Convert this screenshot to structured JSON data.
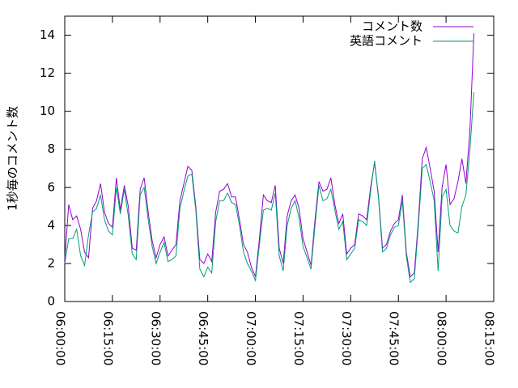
{
  "chart_data": {
    "type": "line",
    "ylabel": "1秒毎のコメント数",
    "x": [
      "06:00:00",
      "06:01:15",
      "06:02:30",
      "06:03:45",
      "06:05:00",
      "06:06:15",
      "06:07:30",
      "06:08:45",
      "06:10:00",
      "06:11:15",
      "06:12:30",
      "06:13:45",
      "06:15:00",
      "06:16:15",
      "06:17:30",
      "06:18:45",
      "06:20:00",
      "06:21:15",
      "06:22:30",
      "06:23:45",
      "06:25:00",
      "06:26:15",
      "06:27:30",
      "06:28:45",
      "06:30:00",
      "06:31:15",
      "06:32:30",
      "06:33:45",
      "06:35:00",
      "06:36:15",
      "06:37:30",
      "06:38:45",
      "06:40:00",
      "06:41:15",
      "06:42:30",
      "06:43:45",
      "06:45:00",
      "06:46:15",
      "06:47:30",
      "06:48:45",
      "06:50:00",
      "06:51:15",
      "06:52:30",
      "06:53:45",
      "06:55:00",
      "06:56:15",
      "06:57:30",
      "06:58:45",
      "07:00:00",
      "07:01:15",
      "07:02:30",
      "07:03:45",
      "07:05:00",
      "07:06:15",
      "07:07:30",
      "07:08:45",
      "07:10:00",
      "07:11:15",
      "07:12:30",
      "07:13:45",
      "07:15:00",
      "07:16:15",
      "07:17:30",
      "07:18:45",
      "07:20:00",
      "07:21:15",
      "07:22:30",
      "07:23:45",
      "07:25:00",
      "07:26:15",
      "07:27:30",
      "07:28:45",
      "07:30:00",
      "07:31:15",
      "07:32:30",
      "07:33:45",
      "07:35:00",
      "07:36:15",
      "07:37:30",
      "07:38:45",
      "07:40:00",
      "07:41:15",
      "07:42:30",
      "07:43:45",
      "07:45:00",
      "07:46:15",
      "07:47:30",
      "07:48:45",
      "07:50:00",
      "07:51:15",
      "07:52:30",
      "07:53:45",
      "07:55:00",
      "07:56:15",
      "07:57:30",
      "07:58:45",
      "08:00:00",
      "08:01:15",
      "08:02:30",
      "08:03:45",
      "08:05:00",
      "08:06:15",
      "08:07:30",
      "08:08:45"
    ],
    "series": [
      {
        "name": "コメント数",
        "color": "#9400d3",
        "values": [
          2.2,
          5.1,
          4.3,
          4.5,
          3.8,
          2.6,
          2.3,
          4.9,
          5.3,
          6.2,
          4.7,
          4.1,
          3.9,
          6.5,
          4.8,
          6.1,
          5.0,
          2.8,
          2.7,
          5.9,
          6.5,
          4.7,
          3.2,
          2.3,
          3.0,
          3.4,
          2.4,
          2.7,
          3.0,
          5.3,
          6.2,
          7.1,
          6.9,
          5.0,
          2.2,
          2.0,
          2.5,
          2.1,
          4.7,
          5.8,
          5.9,
          6.2,
          5.5,
          5.5,
          4.3,
          3.0,
          2.6,
          1.8,
          1.3,
          3.3,
          5.6,
          5.3,
          5.2,
          6.1,
          2.8,
          2.0,
          4.5,
          5.3,
          5.6,
          4.9,
          3.3,
          2.6,
          1.9,
          4.3,
          6.3,
          5.8,
          5.9,
          6.5,
          5.1,
          4.1,
          4.6,
          2.5,
          2.8,
          3.0,
          4.6,
          4.5,
          4.3,
          6.0,
          7.3,
          5.5,
          2.8,
          3.0,
          3.7,
          4.1,
          4.3,
          5.6,
          2.6,
          1.3,
          1.5,
          4.2,
          7.5,
          8.1,
          7.0,
          5.8,
          2.6,
          6.0,
          7.2,
          5.1,
          5.4,
          6.3,
          7.5,
          6.2,
          9.0,
          14.1
        ]
      },
      {
        "name": "英語コメント",
        "color": "#009e73",
        "values": [
          2.0,
          3.3,
          3.3,
          3.8,
          2.4,
          1.9,
          3.5,
          4.7,
          4.9,
          5.6,
          4.3,
          3.7,
          3.5,
          6.0,
          4.6,
          5.9,
          4.5,
          2.5,
          2.2,
          5.6,
          6.0,
          4.3,
          2.9,
          2.0,
          2.6,
          3.1,
          2.1,
          2.2,
          2.4,
          4.9,
          5.8,
          6.6,
          6.7,
          4.8,
          1.7,
          1.3,
          1.8,
          1.5,
          4.2,
          5.3,
          5.3,
          5.7,
          5.2,
          5.1,
          4.0,
          2.6,
          2.0,
          1.6,
          1.1,
          3.0,
          4.8,
          4.9,
          4.8,
          5.7,
          2.4,
          1.6,
          4.0,
          4.9,
          5.3,
          4.4,
          2.9,
          2.3,
          1.7,
          4.0,
          6.1,
          5.3,
          5.4,
          5.9,
          4.8,
          3.8,
          4.2,
          2.2,
          2.5,
          2.8,
          4.3,
          4.2,
          4.0,
          5.8,
          7.4,
          5.4,
          2.6,
          2.8,
          3.5,
          3.9,
          4.0,
          5.3,
          2.4,
          1.0,
          1.2,
          3.9,
          7.0,
          7.2,
          6.3,
          5.3,
          1.6,
          5.5,
          5.9,
          4.0,
          3.7,
          3.6,
          5.0,
          5.6,
          8.0,
          11.0
        ]
      }
    ],
    "xlim": [
      "06:00:00",
      "08:15:00"
    ],
    "xticks": [
      "06:00:00",
      "06:15:00",
      "06:30:00",
      "06:45:00",
      "07:00:00",
      "07:15:00",
      "07:30:00",
      "07:45:00",
      "08:00:00",
      "08:15:00"
    ],
    "ylim": [
      0,
      15
    ],
    "yticks": [
      0,
      2,
      4,
      6,
      8,
      10,
      12,
      14
    ],
    "legend": "top-right",
    "grid": false
  }
}
